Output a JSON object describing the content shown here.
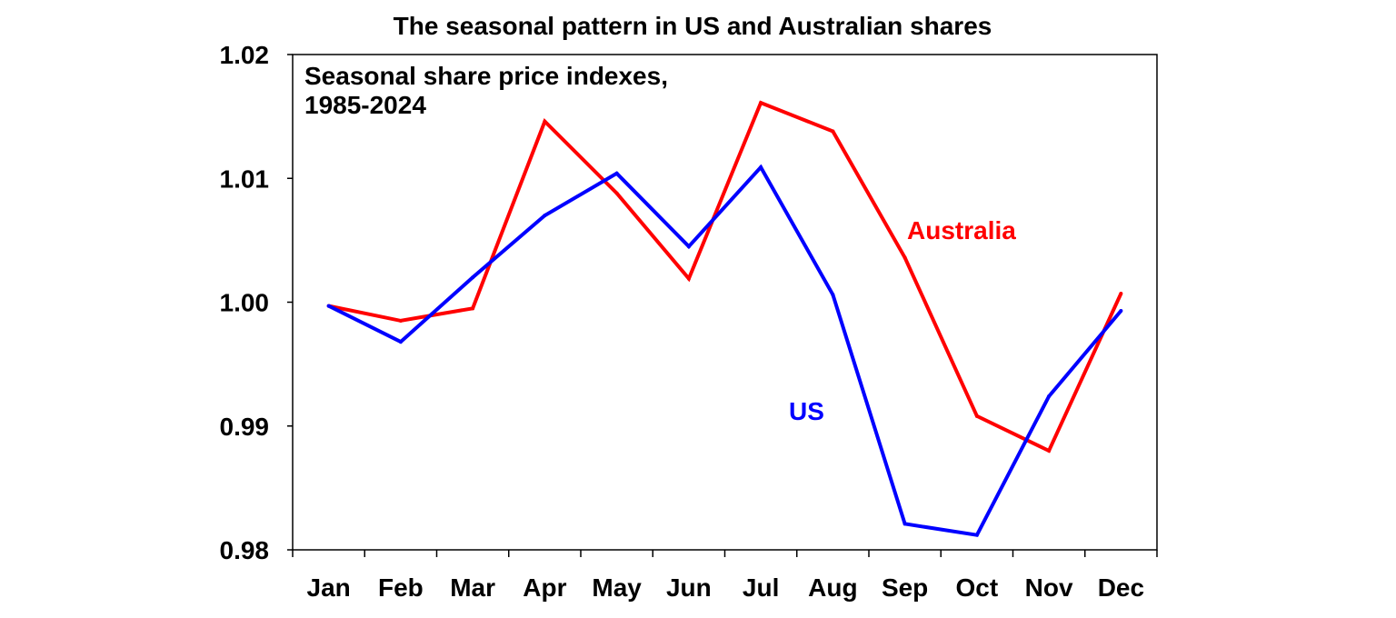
{
  "chart_data": {
    "type": "line",
    "title": "The seasonal pattern in US and Australian shares",
    "annotation": [
      "Seasonal share price indexes,",
      "1985-2024"
    ],
    "categories": [
      "Jan",
      "Feb",
      "Mar",
      "Apr",
      "May",
      "Jun",
      "Jul",
      "Aug",
      "Sep",
      "Oct",
      "Nov",
      "Dec"
    ],
    "ylim": [
      0.98,
      1.02
    ],
    "yticks": [
      "0.98",
      "0.99",
      "1.00",
      "1.01",
      "1.02"
    ],
    "grid": false,
    "series": [
      {
        "name": "Australia",
        "color": "#ff0000",
        "values": [
          0.9997,
          0.9985,
          0.9995,
          1.0146,
          1.0088,
          1.0019,
          1.0161,
          1.0138,
          1.0036,
          0.9908,
          0.988,
          1.0007
        ]
      },
      {
        "name": "US",
        "color": "#0000ff",
        "values": [
          0.9997,
          0.9968,
          1.002,
          1.007,
          1.0104,
          1.0045,
          1.0109,
          1.0006,
          0.9821,
          0.9812,
          0.9924,
          0.9993
        ]
      }
    ]
  }
}
